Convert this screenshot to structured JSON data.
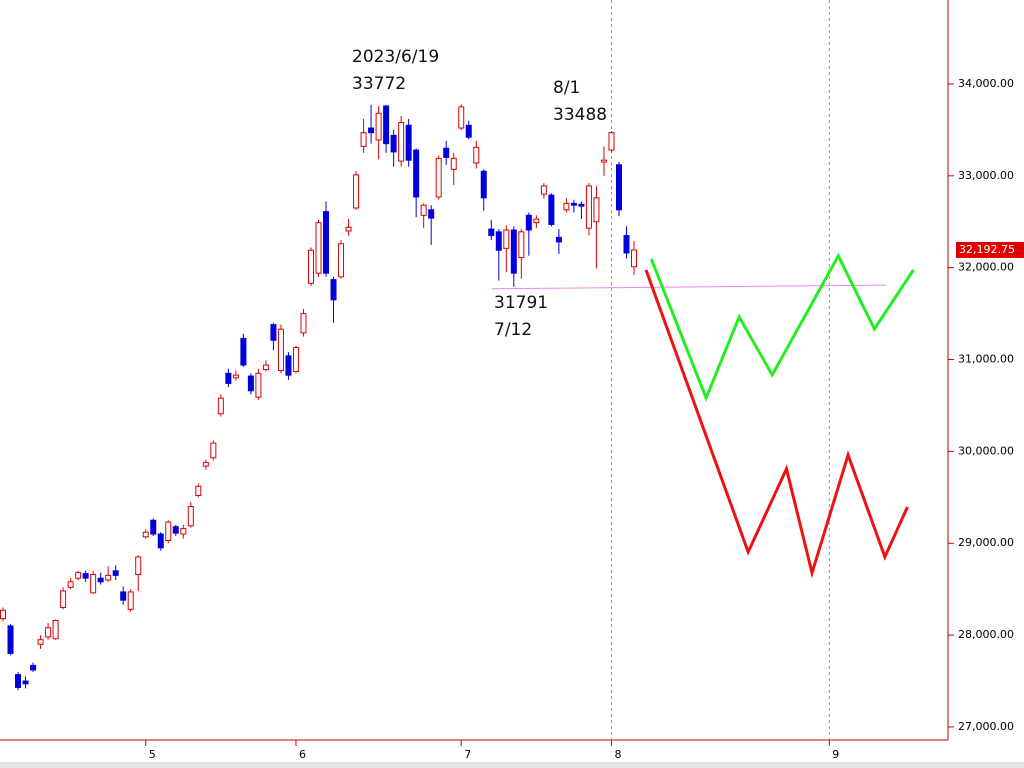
{
  "chart_data": {
    "type": "candlestick",
    "x": [
      0,
      1,
      2,
      3,
      4,
      5,
      6,
      7,
      8,
      9,
      10,
      11,
      12,
      13,
      14,
      15,
      16,
      17,
      18,
      19,
      20,
      21,
      22,
      23,
      24,
      25,
      26,
      27,
      28,
      29,
      30,
      31,
      32,
      33,
      34,
      35,
      36,
      37,
      38,
      39,
      40,
      41,
      42,
      43,
      44,
      45,
      46,
      47,
      48,
      49,
      50,
      51,
      52,
      53,
      54,
      55,
      56,
      57,
      58,
      59,
      60,
      61,
      62,
      63,
      64,
      65,
      66,
      67,
      68,
      69,
      70,
      71,
      72,
      73,
      74,
      75,
      76,
      77,
      78,
      79,
      80,
      81,
      82,
      83,
      84
    ],
    "open": [
      28180,
      28100,
      27570,
      27500,
      27670,
      27900,
      27980,
      27960,
      28300,
      28520,
      28620,
      28670,
      28460,
      28620,
      28600,
      28700,
      28470,
      28280,
      28660,
      29070,
      29250,
      29100,
      29030,
      29180,
      29100,
      29190,
      29520,
      29840,
      29930,
      30410,
      30850,
      30800,
      31230,
      30820,
      30590,
      30890,
      31380,
      30880,
      31040,
      30870,
      31290,
      31830,
      31940,
      32610,
      31870,
      31900,
      32400,
      32650,
      33320,
      33520,
      33390,
      33760,
      33440,
      33160,
      33550,
      33280,
      32570,
      32630,
      32770,
      33300,
      33070,
      33520,
      33550,
      33140,
      33050,
      32420,
      32390,
      32210,
      32410,
      32110,
      32570,
      32490,
      32800,
      32790,
      32330,
      32630,
      32700,
      32690,
      32430,
      32500,
      33150,
      33280,
      33120,
      32350,
      32010
    ],
    "high": [
      28300,
      28120,
      27600,
      27550,
      27700,
      28000,
      28130,
      28170,
      28520,
      28620,
      28700,
      28700,
      28700,
      28680,
      28750,
      28760,
      28530,
      28500,
      28870,
      29150,
      29270,
      29120,
      29250,
      29200,
      29200,
      29450,
      29650,
      29910,
      30120,
      30620,
      30900,
      30880,
      31280,
      30850,
      30900,
      30990,
      31400,
      31380,
      31080,
      31150,
      31550,
      32220,
      32520,
      32720,
      31900,
      32300,
      32530,
      33050,
      33620,
      33772,
      33760,
      33770,
      33500,
      33650,
      33620,
      33300,
      32700,
      32680,
      33220,
      33380,
      33250,
      33780,
      33600,
      33380,
      33070,
      32520,
      32420,
      32460,
      32450,
      32420,
      32600,
      32570,
      32920,
      32810,
      32420,
      32760,
      32740,
      32720,
      32920,
      32890,
      33320,
      33488,
      33150,
      32450,
      32290
    ],
    "low": [
      28150,
      27780,
      27400,
      27420,
      27600,
      27850,
      27950,
      27950,
      28280,
      28500,
      28600,
      28580,
      28450,
      28550,
      28580,
      28600,
      28330,
      28250,
      28480,
      29050,
      29080,
      28920,
      29000,
      29080,
      29050,
      29170,
      29500,
      29800,
      29900,
      30380,
      30700,
      30770,
      30920,
      30620,
      30560,
      30870,
      31100,
      30850,
      30780,
      30850,
      31250,
      31800,
      31900,
      31900,
      31400,
      31880,
      32350,
      32630,
      33250,
      33350,
      33180,
      33250,
      33100,
      33100,
      33100,
      32550,
      32430,
      32250,
      32740,
      33120,
      32900,
      33500,
      33400,
      33080,
      32620,
      32300,
      31860,
      31950,
      31791,
      31880,
      32130,
      32430,
      32750,
      32450,
      32150,
      32600,
      32600,
      32530,
      32350,
      31990,
      33000,
      33250,
      32560,
      32100,
      31920
    ],
    "close": [
      28270,
      27800,
      27430,
      27470,
      27620,
      27950,
      28080,
      28160,
      28480,
      28580,
      28680,
      28620,
      28660,
      28580,
      28650,
      28650,
      28380,
      28470,
      28850,
      29120,
      29100,
      28950,
      29230,
      29110,
      29160,
      29400,
      29620,
      29880,
      30090,
      30580,
      30740,
      30830,
      30940,
      30660,
      30850,
      30940,
      31210,
      31330,
      30830,
      31130,
      31500,
      32190,
      32490,
      31940,
      31650,
      32260,
      32440,
      33010,
      33470,
      33470,
      33680,
      33350,
      33260,
      33580,
      33170,
      32770,
      32680,
      32540,
      33190,
      33200,
      33190,
      33750,
      33420,
      33310,
      32760,
      32350,
      32190,
      32410,
      31940,
      32390,
      32410,
      32530,
      32890,
      32470,
      32280,
      32700,
      32680,
      32670,
      32890,
      32760,
      33170,
      33470,
      32630,
      32160,
      32192.75
    ],
    "up_color": "#e00000",
    "down_color": "#0000dd",
    "last_price": {
      "value": 32192.75,
      "label": "32,192.75"
    },
    "xlim": [
      -0.4,
      125.8
    ],
    "ylim": [
      26858,
      34914
    ],
    "xticks": [
      {
        "value": 19,
        "label": "5"
      },
      {
        "value": 39,
        "label": "6"
      },
      {
        "value": 61,
        "label": "7"
      },
      {
        "value": 81,
        "label": "8"
      },
      {
        "value": 110,
        "label": "9"
      }
    ],
    "yticks": [
      {
        "value": 27000,
        "label": "27,000.00"
      },
      {
        "value": 28000,
        "label": "28,000.00"
      },
      {
        "value": 29000,
        "label": "29,000.00"
      },
      {
        "value": 30000,
        "label": "30,000.00"
      },
      {
        "value": 31000,
        "label": "31,000.00"
      },
      {
        "value": 32000,
        "label": "32,000.00"
      },
      {
        "value": 33000,
        "label": "33,000.00"
      },
      {
        "value": 34000,
        "label": "34,000.00"
      }
    ],
    "vlines": [
      81,
      110
    ],
    "overlays": [
      {
        "color": "#ee88ee",
        "x": [
          65.1,
          117.6
        ],
        "values": [
          31770,
          31810
        ]
      },
      {
        "color": "#22ee22",
        "x": [
          86.3,
          93.6,
          98.0,
          102.4,
          111.2,
          116.0,
          121.2
        ],
        "values": [
          32095,
          30582,
          31464,
          30832,
          32128,
          31333,
          31975
        ]
      },
      {
        "color": "#ee1111",
        "x": [
          85.6,
          99.2,
          104.3,
          107.7,
          112.5,
          117.4,
          120.4
        ],
        "values": [
          31975,
          28905,
          29809,
          28677,
          29961,
          28851,
          29395
        ]
      }
    ],
    "annotations": [
      {
        "label": "2023/6/19",
        "value": 33772
      },
      {
        "label": "8/1",
        "value": 33488
      },
      {
        "value": 31791,
        "label": "7/12"
      }
    ]
  }
}
